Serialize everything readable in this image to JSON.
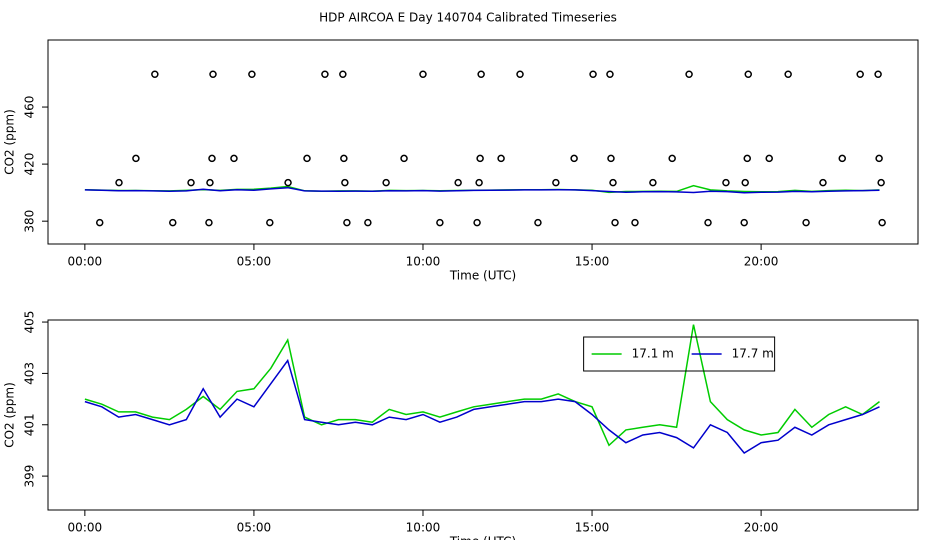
{
  "chart_data": [
    {
      "type": "line",
      "title": "HDP AIRCOA E  Day 140704  Calibrated Timeseries",
      "xlabel": "Time (UTC)",
      "ylabel": "CO2 (ppm)",
      "xlim": [
        -1.09,
        24.64
      ],
      "ylim": [
        364,
        507
      ],
      "xticks": [
        {
          "value": 0,
          "label": "00:00"
        },
        {
          "value": 5,
          "label": "05:00"
        },
        {
          "value": 10,
          "label": "10:00"
        },
        {
          "value": 15,
          "label": "15:00"
        },
        {
          "value": 20,
          "label": "20:00"
        }
      ],
      "yticks": [
        380,
        420,
        460
      ],
      "x": [
        0,
        0.5,
        1,
        1.5,
        2,
        2.5,
        3,
        3.5,
        4,
        4.5,
        5,
        5.5,
        6,
        6.5,
        7,
        7.5,
        8,
        8.5,
        9,
        9.5,
        10,
        10.5,
        11,
        11.5,
        12,
        12.5,
        13,
        13.5,
        14,
        14.5,
        15,
        15.5,
        16,
        16.5,
        17,
        17.5,
        18,
        18.5,
        19,
        19.5,
        20,
        20.5,
        21,
        21.5,
        22,
        22.5,
        23,
        23.5
      ],
      "series": [
        {
          "color": "#00cc00",
          "values": [
            402.0,
            401.8,
            401.5,
            401.5,
            401.3,
            401.2,
            401.6,
            402.1,
            401.6,
            402.3,
            402.4,
            403.2,
            404.3,
            401.3,
            401.0,
            401.2,
            401.2,
            401.1,
            401.6,
            401.4,
            401.5,
            401.3,
            401.5,
            401.7,
            401.8,
            401.9,
            402.0,
            402.0,
            402.2,
            401.9,
            401.7,
            400.2,
            400.8,
            400.9,
            401.0,
            400.9,
            404.9,
            401.9,
            401.2,
            400.8,
            400.6,
            400.7,
            401.6,
            400.9,
            401.4,
            401.7,
            401.4,
            401.9
          ]
        },
        {
          "color": "#0000cc",
          "values": [
            401.9,
            401.7,
            401.3,
            401.4,
            401.2,
            401.0,
            401.2,
            402.4,
            401.3,
            402.0,
            401.7,
            402.6,
            403.5,
            401.2,
            401.1,
            401.0,
            401.1,
            401.0,
            401.3,
            401.2,
            401.4,
            401.1,
            401.3,
            401.6,
            401.7,
            401.8,
            401.9,
            401.9,
            402.0,
            401.9,
            401.4,
            400.8,
            400.3,
            400.6,
            400.7,
            400.5,
            400.1,
            401.0,
            400.7,
            399.9,
            400.3,
            400.4,
            400.9,
            400.6,
            401.0,
            401.2,
            401.4,
            401.7
          ]
        }
      ],
      "points": {
        "color": "#000000",
        "x": [
          2.07,
          3.79,
          4.94,
          7.1,
          7.63,
          10.0,
          11.72,
          12.87,
          15.03,
          15.53,
          17.87,
          19.62,
          20.8,
          22.93,
          23.46,
          1.51,
          3.76,
          4.41,
          6.57,
          7.66,
          9.44,
          11.69,
          12.31,
          14.47,
          15.56,
          17.37,
          19.59,
          20.24,
          22.4,
          23.49,
          1.01,
          3.14,
          3.7,
          6.01,
          7.69,
          8.91,
          11.04,
          11.66,
          13.93,
          15.62,
          16.8,
          18.96,
          19.53,
          21.83,
          23.55,
          0.44,
          2.6,
          3.67,
          5.47,
          7.75,
          8.37,
          10.5,
          11.6,
          13.4,
          15.68,
          16.27,
          18.43,
          19.5,
          21.33,
          23.58
        ],
        "values": [
          483,
          483,
          483,
          483,
          483,
          483,
          483,
          483,
          483,
          483,
          483,
          483,
          483,
          483,
          483,
          424,
          424,
          424,
          424,
          424,
          424,
          424,
          424,
          424,
          424,
          424,
          424,
          424,
          424,
          424,
          407,
          407,
          407,
          407,
          407,
          407,
          407,
          407,
          407,
          407,
          407,
          407,
          407,
          407,
          407,
          379,
          379,
          379,
          379,
          379,
          379,
          379,
          379,
          379,
          379,
          379,
          379,
          379,
          379,
          379
        ]
      }
    },
    {
      "type": "line",
      "xlabel": "Time (UTC)",
      "ylabel": "CO2 (ppm)",
      "xlim": [
        -1.09,
        24.64
      ],
      "ylim": [
        397.68,
        405.08
      ],
      "xticks": [
        {
          "value": 0,
          "label": "00:00"
        },
        {
          "value": 5,
          "label": "05:00"
        },
        {
          "value": 10,
          "label": "10:00"
        },
        {
          "value": 15,
          "label": "15:00"
        },
        {
          "value": 20,
          "label": "20:00"
        }
      ],
      "yticks": [
        399,
        401,
        403,
        405
      ],
      "legend": "top-right",
      "x": [
        0,
        0.5,
        1,
        1.5,
        2,
        2.5,
        3,
        3.5,
        4,
        4.5,
        5,
        5.5,
        6,
        6.5,
        7,
        7.5,
        8,
        8.5,
        9,
        9.5,
        10,
        10.5,
        11,
        11.5,
        12,
        12.5,
        13,
        13.5,
        14,
        14.5,
        15,
        15.5,
        16,
        16.5,
        17,
        17.5,
        18,
        18.5,
        19,
        19.5,
        20,
        20.5,
        21,
        21.5,
        22,
        22.5,
        23,
        23.5
      ],
      "series": [
        {
          "name": "17.1 m",
          "color": "#00cc00",
          "values": [
            402.0,
            401.8,
            401.5,
            401.5,
            401.3,
            401.2,
            401.6,
            402.1,
            401.6,
            402.3,
            402.4,
            403.2,
            404.3,
            401.3,
            401.0,
            401.2,
            401.2,
            401.1,
            401.6,
            401.4,
            401.5,
            401.3,
            401.5,
            401.7,
            401.8,
            401.9,
            402.0,
            402.0,
            402.2,
            401.9,
            401.7,
            400.2,
            400.8,
            400.9,
            401.0,
            400.9,
            404.9,
            401.9,
            401.2,
            400.8,
            400.6,
            400.7,
            401.6,
            400.9,
            401.4,
            401.7,
            401.4,
            401.9
          ]
        },
        {
          "name": "17.7 m",
          "color": "#0000cc",
          "values": [
            401.9,
            401.7,
            401.3,
            401.4,
            401.2,
            401.0,
            401.2,
            402.4,
            401.3,
            402.0,
            401.7,
            402.6,
            403.5,
            401.2,
            401.1,
            401.0,
            401.1,
            401.0,
            401.3,
            401.2,
            401.4,
            401.1,
            401.3,
            401.6,
            401.7,
            401.8,
            401.9,
            401.9,
            402.0,
            401.9,
            401.4,
            400.8,
            400.3,
            400.6,
            400.7,
            400.5,
            400.1,
            401.0,
            400.7,
            399.9,
            400.3,
            400.4,
            400.9,
            400.6,
            401.0,
            401.2,
            401.4,
            401.7
          ]
        }
      ]
    }
  ]
}
